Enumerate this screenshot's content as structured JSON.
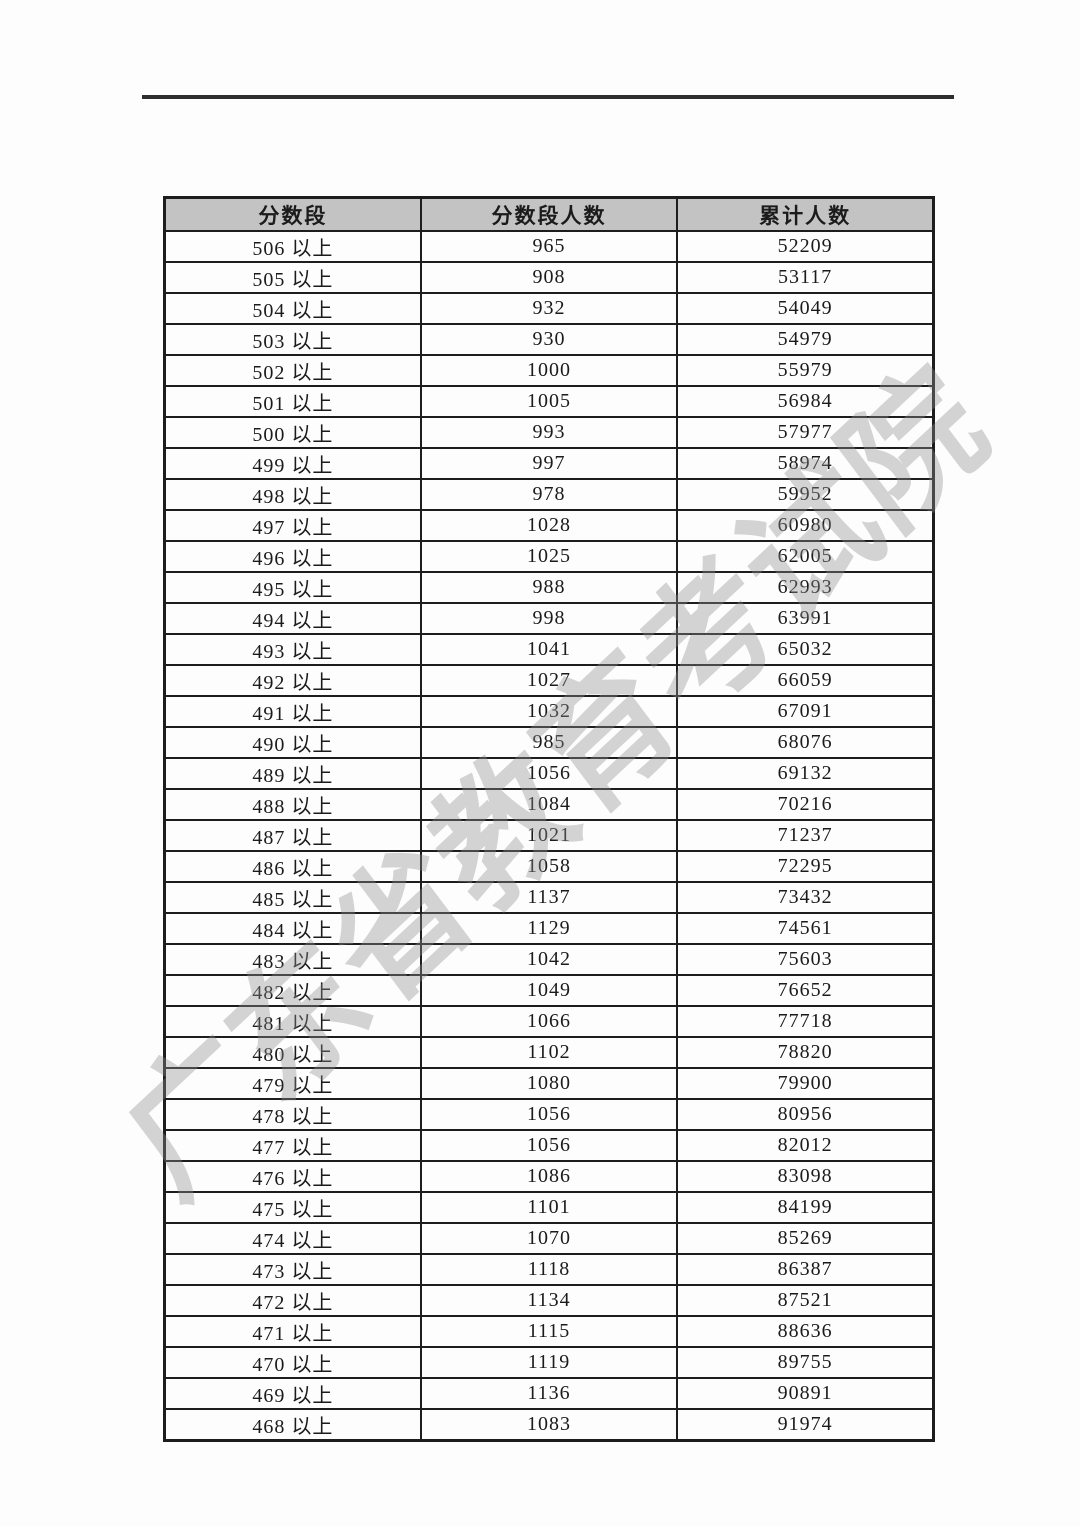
{
  "watermark": {
    "text": "广东省教育考试院"
  },
  "colors": {
    "header_background": "#c3c3c3",
    "table_border": "#1d1d1d",
    "text": "#1b1b1b",
    "watermark_gray": "#8f8f8f",
    "top_rule": "#2e2e2e"
  },
  "table": {
    "columns": [
      "分数段",
      "分数段人数",
      "累计人数"
    ],
    "rows": [
      {
        "score_label": "506 以上",
        "segment_count": "965",
        "cumulative_count": "52209"
      },
      {
        "score_label": "505 以上",
        "segment_count": "908",
        "cumulative_count": "53117"
      },
      {
        "score_label": "504 以上",
        "segment_count": "932",
        "cumulative_count": "54049"
      },
      {
        "score_label": "503 以上",
        "segment_count": "930",
        "cumulative_count": "54979"
      },
      {
        "score_label": "502 以上",
        "segment_count": "1000",
        "cumulative_count": "55979"
      },
      {
        "score_label": "501 以上",
        "segment_count": "1005",
        "cumulative_count": "56984"
      },
      {
        "score_label": "500 以上",
        "segment_count": "993",
        "cumulative_count": "57977"
      },
      {
        "score_label": "499 以上",
        "segment_count": "997",
        "cumulative_count": "58974"
      },
      {
        "score_label": "498 以上",
        "segment_count": "978",
        "cumulative_count": "59952"
      },
      {
        "score_label": "497 以上",
        "segment_count": "1028",
        "cumulative_count": "60980"
      },
      {
        "score_label": "496 以上",
        "segment_count": "1025",
        "cumulative_count": "62005"
      },
      {
        "score_label": "495 以上",
        "segment_count": "988",
        "cumulative_count": "62993"
      },
      {
        "score_label": "494 以上",
        "segment_count": "998",
        "cumulative_count": "63991"
      },
      {
        "score_label": "493 以上",
        "segment_count": "1041",
        "cumulative_count": "65032"
      },
      {
        "score_label": "492 以上",
        "segment_count": "1027",
        "cumulative_count": "66059"
      },
      {
        "score_label": "491 以上",
        "segment_count": "1032",
        "cumulative_count": "67091"
      },
      {
        "score_label": "490 以上",
        "segment_count": "985",
        "cumulative_count": "68076"
      },
      {
        "score_label": "489 以上",
        "segment_count": "1056",
        "cumulative_count": "69132"
      },
      {
        "score_label": "488 以上",
        "segment_count": "1084",
        "cumulative_count": "70216"
      },
      {
        "score_label": "487 以上",
        "segment_count": "1021",
        "cumulative_count": "71237"
      },
      {
        "score_label": "486 以上",
        "segment_count": "1058",
        "cumulative_count": "72295"
      },
      {
        "score_label": "485 以上",
        "segment_count": "1137",
        "cumulative_count": "73432"
      },
      {
        "score_label": "484 以上",
        "segment_count": "1129",
        "cumulative_count": "74561"
      },
      {
        "score_label": "483 以上",
        "segment_count": "1042",
        "cumulative_count": "75603"
      },
      {
        "score_label": "482 以上",
        "segment_count": "1049",
        "cumulative_count": "76652"
      },
      {
        "score_label": "481 以上",
        "segment_count": "1066",
        "cumulative_count": "77718"
      },
      {
        "score_label": "480 以上",
        "segment_count": "1102",
        "cumulative_count": "78820"
      },
      {
        "score_label": "479 以上",
        "segment_count": "1080",
        "cumulative_count": "79900"
      },
      {
        "score_label": "478 以上",
        "segment_count": "1056",
        "cumulative_count": "80956"
      },
      {
        "score_label": "477 以上",
        "segment_count": "1056",
        "cumulative_count": "82012"
      },
      {
        "score_label": "476 以上",
        "segment_count": "1086",
        "cumulative_count": "83098"
      },
      {
        "score_label": "475 以上",
        "segment_count": "1101",
        "cumulative_count": "84199"
      },
      {
        "score_label": "474 以上",
        "segment_count": "1070",
        "cumulative_count": "85269"
      },
      {
        "score_label": "473 以上",
        "segment_count": "1118",
        "cumulative_count": "86387"
      },
      {
        "score_label": "472 以上",
        "segment_count": "1134",
        "cumulative_count": "87521"
      },
      {
        "score_label": "471 以上",
        "segment_count": "1115",
        "cumulative_count": "88636"
      },
      {
        "score_label": "470 以上",
        "segment_count": "1119",
        "cumulative_count": "89755"
      },
      {
        "score_label": "469 以上",
        "segment_count": "1136",
        "cumulative_count": "90891"
      },
      {
        "score_label": "468 以上",
        "segment_count": "1083",
        "cumulative_count": "91974"
      }
    ]
  }
}
